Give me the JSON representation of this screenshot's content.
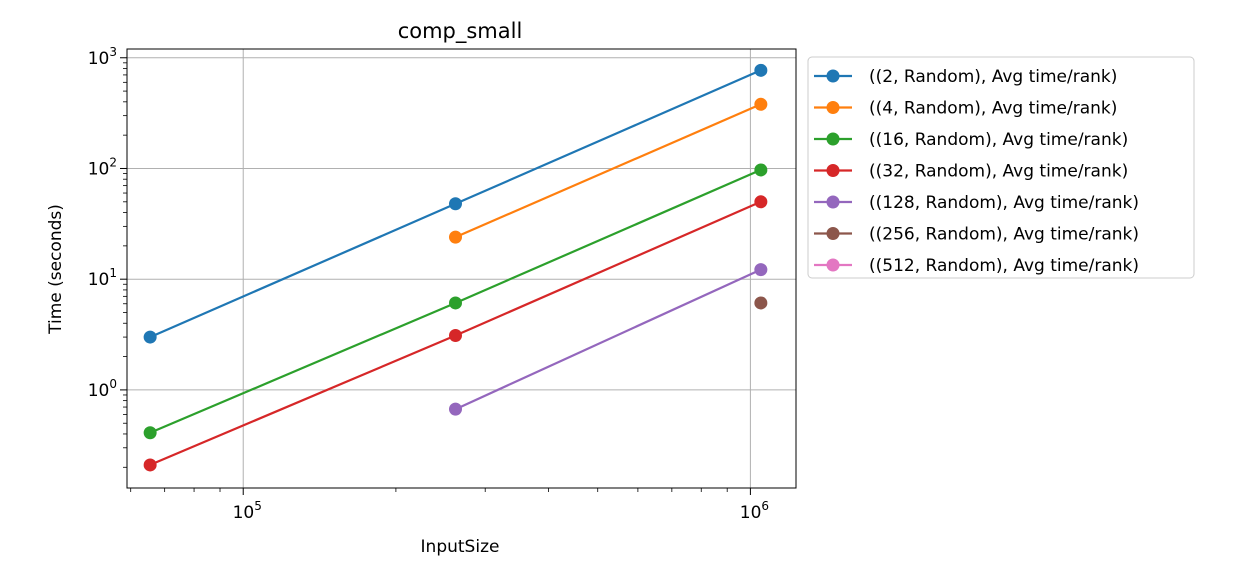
{
  "chart_data": {
    "type": "line",
    "title": "comp_small",
    "xlabel": "InputSize",
    "ylabel": "Time (seconds)",
    "xscale": "log",
    "yscale": "log",
    "xlim": [
      59000,
      1230000
    ],
    "ylim": [
      0.13,
      1200
    ],
    "grid": true,
    "legend_position": "outside-right-top",
    "x_ticks": [
      {
        "value": 100000,
        "base": "10",
        "exp": "5"
      },
      {
        "value": 1000000,
        "base": "10",
        "exp": "6"
      }
    ],
    "y_ticks": [
      {
        "value": 1,
        "base": "10",
        "exp": "0"
      },
      {
        "value": 10,
        "base": "10",
        "exp": "1"
      },
      {
        "value": 100,
        "base": "10",
        "exp": "2"
      },
      {
        "value": 1000,
        "base": "10",
        "exp": "3"
      }
    ],
    "series": [
      {
        "name": "((2, Random), Avg time/rank)",
        "color": "#1f77b4",
        "points": [
          [
            65536,
            3.0
          ],
          [
            262144,
            48
          ],
          [
            1048576,
            770
          ]
        ]
      },
      {
        "name": "((4, Random), Avg time/rank)",
        "color": "#ff7f0e",
        "points": [
          [
            262144,
            24
          ],
          [
            1048576,
            380
          ]
        ]
      },
      {
        "name": "((16, Random), Avg time/rank)",
        "color": "#2ca02c",
        "points": [
          [
            65536,
            0.41
          ],
          [
            262144,
            6.1
          ],
          [
            1048576,
            97
          ]
        ]
      },
      {
        "name": "((32, Random), Avg time/rank)",
        "color": "#d62728",
        "points": [
          [
            65536,
            0.21
          ],
          [
            262144,
            3.1
          ],
          [
            1048576,
            50
          ]
        ]
      },
      {
        "name": "((128, Random), Avg time/rank)",
        "color": "#9467bd",
        "points": [
          [
            262144,
            0.67
          ],
          [
            1048576,
            12.2
          ]
        ]
      },
      {
        "name": "((256, Random), Avg time/rank)",
        "color": "#8c564b",
        "points": [
          [
            1048576,
            6.1
          ]
        ]
      },
      {
        "name": "((512, Random), Avg time/rank)",
        "color": "#e377c2",
        "points": []
      }
    ]
  }
}
